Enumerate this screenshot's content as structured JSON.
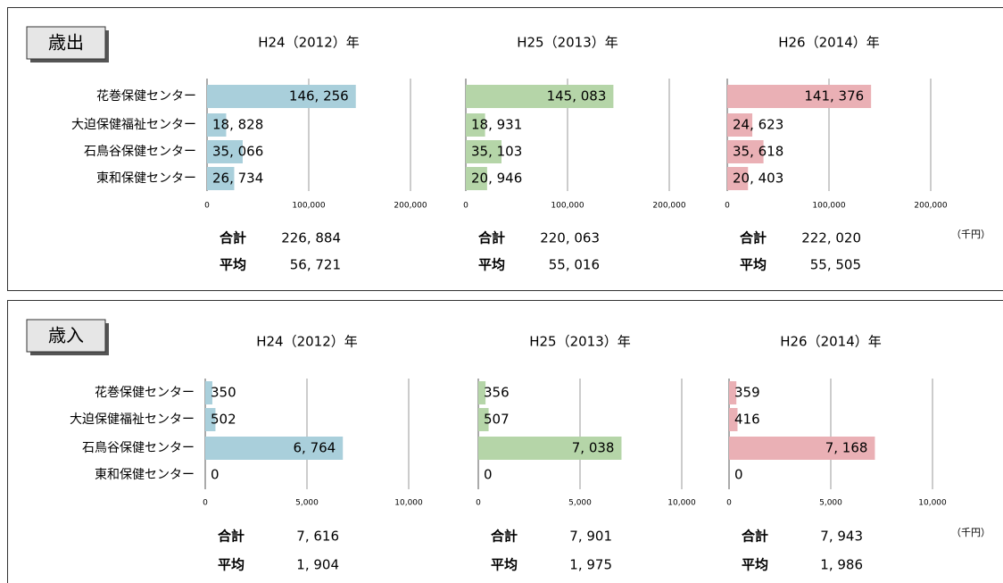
{
  "panels": [
    {
      "label": "歳出",
      "unit": "（千円）"
    },
    {
      "label": "歳入",
      "unit": "（千円）"
    }
  ],
  "chart_data": [
    {
      "type": "bar",
      "title": "H24（2012）年",
      "categories": [
        "花巻保健センター",
        "大迫保健福祉センター",
        "石鳥谷保健センター",
        "東和保健センター"
      ],
      "values": [
        146256,
        18828,
        35066,
        26734
      ],
      "value_labels": [
        "146, 256",
        "18, 828",
        "35, 066",
        "26, 734"
      ],
      "color": "#a9cfdb",
      "xlim": [
        0,
        200000
      ],
      "xticks": [
        0,
        {
          "value": 100000,
          "label": "100,000"
        },
        {
          "value": 200000,
          "label": "200,000"
        }
      ],
      "grid": true,
      "summary": [
        {
          "label": "合計",
          "value": "226, 884"
        },
        {
          "label": "平均",
          "value": "56, 721"
        }
      ]
    },
    {
      "type": "bar",
      "title": "H25（2013）年",
      "values": [
        145083,
        18931,
        35103,
        20946
      ],
      "value_labels": [
        "145, 083",
        "18, 931",
        "35, 103",
        "20, 946"
      ],
      "color": "#b5d5a8",
      "xlim": [
        0,
        200000
      ],
      "xticks": [
        0,
        {
          "value": 100000,
          "label": "100,000"
        },
        {
          "value": 200000,
          "label": "200,000"
        }
      ],
      "grid": true,
      "summary": [
        {
          "label": "合計",
          "value": "220, 063"
        },
        {
          "label": "平均",
          "value": "55, 016"
        }
      ]
    },
    {
      "type": "bar",
      "title": "H26（2014）年",
      "values": [
        141376,
        24623,
        35618,
        20403
      ],
      "value_labels": [
        "141, 376",
        "24, 623",
        "35, 618",
        "20, 403"
      ],
      "color": "#eab0b5",
      "xlim": [
        0,
        200000
      ],
      "xticks": [
        0,
        {
          "value": 100000,
          "label": "100,000"
        },
        {
          "value": 200000,
          "label": "200,000"
        }
      ],
      "grid": true,
      "summary": [
        {
          "label": "合計",
          "value": "222, 020"
        },
        {
          "label": "平均",
          "value": "55, 505"
        }
      ]
    },
    {
      "type": "bar",
      "title": "H24（2012）年",
      "categories": [
        "花巻保健センター",
        "大迫保健福祉センター",
        "石鳥谷保健センター",
        "東和保健センター"
      ],
      "values": [
        350,
        502,
        6764,
        0
      ],
      "value_labels": [
        "350",
        "502",
        "6, 764",
        "0"
      ],
      "color": "#a9cfdb",
      "xlim": [
        0,
        10000
      ],
      "xticks": [
        0,
        {
          "value": 5000,
          "label": "5,000"
        },
        {
          "value": 10000,
          "label": "10,000"
        }
      ],
      "grid": true,
      "summary": [
        {
          "label": "合計",
          "value": "7, 616"
        },
        {
          "label": "平均",
          "value": "1, 904"
        }
      ]
    },
    {
      "type": "bar",
      "title": "H25（2013）年",
      "values": [
        356,
        507,
        7038,
        0
      ],
      "value_labels": [
        "356",
        "507",
        "7, 038",
        "0"
      ],
      "color": "#b5d5a8",
      "xlim": [
        0,
        10000
      ],
      "xticks": [
        0,
        {
          "value": 5000,
          "label": "5,000"
        },
        {
          "value": 10000,
          "label": "10,000"
        }
      ],
      "grid": true,
      "summary": [
        {
          "label": "合計",
          "value": "7, 901"
        },
        {
          "label": "平均",
          "value": "1, 975"
        }
      ]
    },
    {
      "type": "bar",
      "title": "H26（2014）年",
      "values": [
        359,
        416,
        7168,
        0
      ],
      "value_labels": [
        "359",
        "416",
        "7, 168",
        "0"
      ],
      "color": "#eab0b5",
      "xlim": [
        0,
        10000
      ],
      "xticks": [
        0,
        {
          "value": 5000,
          "label": "5,000"
        },
        {
          "value": 10000,
          "label": "10,000"
        }
      ],
      "grid": true,
      "summary": [
        {
          "label": "合計",
          "value": "7, 943"
        },
        {
          "label": "平均",
          "value": "1, 986"
        }
      ]
    }
  ]
}
